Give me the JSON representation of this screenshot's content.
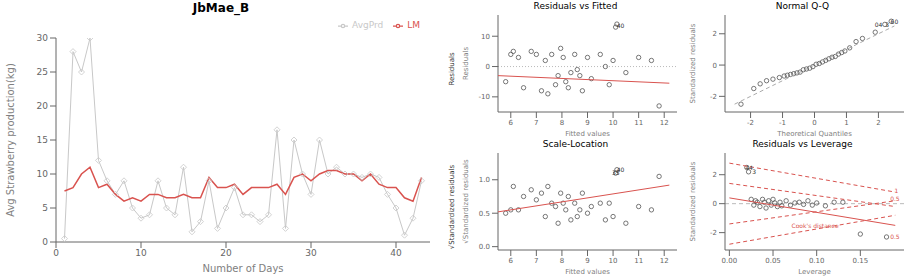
{
  "chart_data": [
    {
      "type": "line",
      "title": "JbMae_B",
      "x_label": "Number of Days",
      "y_label": "Avg Strawberry production(kg)",
      "x": [
        1,
        2,
        3,
        4,
        5,
        6,
        7,
        8,
        9,
        10,
        11,
        12,
        13,
        14,
        15,
        16,
        17,
        18,
        19,
        20,
        21,
        22,
        23,
        24,
        25,
        26,
        27,
        28,
        29,
        30,
        31,
        32,
        33,
        34,
        35,
        36,
        37,
        38,
        39,
        40,
        41,
        42,
        43
      ],
      "series": [
        {
          "name": "AvgPrd",
          "color": "#c8c8c8",
          "marker": "diamond",
          "values": [
            0.5,
            28,
            25,
            30,
            12,
            9,
            7,
            9,
            5,
            3.5,
            4,
            9,
            5,
            4,
            11,
            1.5,
            3,
            9,
            2,
            5,
            8,
            4,
            4,
            3,
            4,
            16.5,
            2,
            15,
            10,
            7,
            15,
            10,
            11,
            10,
            10,
            9.5,
            10,
            9.5,
            7,
            5,
            1,
            3.5,
            9
          ]
        },
        {
          "name": "LM",
          "color": "#d9534f",
          "values": [
            7.5,
            8,
            10,
            11,
            8,
            8.5,
            7,
            6,
            6.5,
            6,
            7,
            7,
            6.5,
            6.5,
            7,
            6.5,
            6.5,
            9.5,
            8,
            8,
            8.5,
            7,
            8,
            8,
            8,
            8.5,
            7,
            9.5,
            10,
            9,
            10,
            10.5,
            10.5,
            10,
            10,
            9,
            10,
            8.5,
            8,
            8,
            6.5,
            6,
            9.5
          ]
        }
      ],
      "xlim": [
        0,
        44
      ],
      "ylim": [
        0,
        30
      ],
      "xticks": [
        0,
        10,
        20,
        30,
        40
      ],
      "yticks": [
        0,
        5,
        10,
        15,
        20,
        25,
        30
      ],
      "legend": "upper right",
      "grid": false
    },
    {
      "type": "scatter",
      "title": "Residuals vs Fitted",
      "x_label": "Fitted values",
      "y_label": "Residuals",
      "series": [
        {
          "type": "scatter",
          "marker": "circle",
          "color": "#555555",
          "x": [
            5.8,
            6.0,
            6.1,
            6.3,
            6.5,
            6.8,
            7.0,
            7.2,
            7.35,
            7.45,
            7.6,
            7.75,
            7.85,
            7.95,
            8.05,
            8.15,
            8.25,
            8.35,
            8.5,
            8.6,
            8.7,
            8.8,
            9.0,
            9.15,
            9.5,
            9.7,
            9.85,
            10.0,
            10.1,
            10.15,
            10.5,
            11.0,
            11.5,
            11.8
          ],
          "values": [
            -5,
            4,
            5,
            3,
            -7,
            5,
            4,
            -8,
            2,
            -9,
            4,
            -6,
            -3,
            6,
            3,
            -5,
            -7,
            -2,
            4,
            -1,
            -3,
            -8,
            3,
            -4,
            4,
            0,
            -6,
            2,
            13,
            14,
            -2,
            3,
            2,
            -13
          ]
        },
        {
          "type": "line",
          "color": "#d9534f",
          "x": [
            5.5,
            12.2
          ],
          "values": [
            -3.0,
            -5.5
          ]
        }
      ],
      "hline": {
        "value": 0,
        "color": "#aaaaaa",
        "line_style": "dotted"
      },
      "xlim": [
        5.5,
        12.5
      ],
      "ylim": [
        -15,
        17
      ],
      "xticks": [
        6,
        7,
        8,
        9,
        10,
        11,
        12
      ],
      "yticks": [
        -10,
        0,
        10
      ],
      "grid": false,
      "annotations": [
        {
          "text": "40",
          "x": 10.1,
          "y": 13.5,
          "color": "#333333"
        },
        {
          "text": "Residuals",
          "color": "#333333"
        }
      ]
    },
    {
      "type": "scatter",
      "title": "Normal Q-Q",
      "x_label": "Theoretical Quantiles",
      "y_label": "Standardized residuals",
      "series": [
        {
          "type": "scatter",
          "marker": "circle",
          "color": "#555555",
          "x": [
            -2.3,
            -1.9,
            -1.7,
            -1.5,
            -1.3,
            -1.1,
            -0.95,
            -0.85,
            -0.75,
            -0.65,
            -0.55,
            -0.45,
            -0.35,
            -0.25,
            -0.15,
            -0.05,
            0.05,
            0.15,
            0.25,
            0.35,
            0.45,
            0.55,
            0.65,
            0.75,
            0.85,
            0.95,
            1.1,
            1.3,
            1.5,
            1.9,
            2.2,
            2.4
          ],
          "values": [
            -2.5,
            -1.5,
            -1.2,
            -1.0,
            -0.9,
            -0.8,
            -0.7,
            -0.65,
            -0.6,
            -0.55,
            -0.5,
            -0.45,
            -0.3,
            -0.25,
            -0.2,
            -0.1,
            0.05,
            0.1,
            0.2,
            0.3,
            0.4,
            0.5,
            0.55,
            0.7,
            0.8,
            0.9,
            1.1,
            1.5,
            1.7,
            2.1,
            2.6,
            2.8
          ]
        },
        {
          "type": "line",
          "color": "#aaaaaa",
          "line_style": "dashed",
          "x": [
            -2.5,
            2.5
          ],
          "values": [
            -2.5,
            2.5
          ]
        }
      ],
      "xlim": [
        -2.8,
        2.8
      ],
      "ylim": [
        -3.0,
        3.2
      ],
      "xticks": [
        -2,
        -1,
        0,
        1,
        2
      ],
      "yticks": [
        -2,
        0,
        2
      ],
      "grid": false,
      "annotations": [
        {
          "text": "04",
          "x": 1.85,
          "y": 2.55,
          "color": "#333333"
        },
        {
          "text": "3",
          "x": 2.18,
          "y": 2.6,
          "color": "#333333"
        },
        {
          "text": "60",
          "x": 2.35,
          "y": 2.78,
          "color": "#333333"
        }
      ]
    },
    {
      "type": "scatter",
      "title": "Scale-Location",
      "x_label": "Fitted values",
      "y_label": "√Standardized residuals",
      "series": [
        {
          "type": "scatter",
          "marker": "circle",
          "color": "#555555",
          "x": [
            5.8,
            6.0,
            6.1,
            6.3,
            6.5,
            6.8,
            7.0,
            7.2,
            7.35,
            7.45,
            7.6,
            7.75,
            7.85,
            7.95,
            8.05,
            8.15,
            8.25,
            8.35,
            8.5,
            8.6,
            8.7,
            8.8,
            9.0,
            9.15,
            9.5,
            9.7,
            9.85,
            10.0,
            10.1,
            10.15,
            10.5,
            11.0,
            11.5,
            11.8
          ],
          "values": [
            0.5,
            0.55,
            0.9,
            0.55,
            0.75,
            0.85,
            0.7,
            0.8,
            0.45,
            0.9,
            0.65,
            0.6,
            0.35,
            0.8,
            0.65,
            0.55,
            0.75,
            0.4,
            0.65,
            0.45,
            0.55,
            0.8,
            0.5,
            0.6,
            0.65,
            0.4,
            0.65,
            0.45,
            1.1,
            1.15,
            0.35,
            0.6,
            0.55,
            1.05
          ]
        },
        {
          "type": "line",
          "color": "#d9534f",
          "x": [
            5.5,
            12.2
          ],
          "values": [
            0.52,
            0.92
          ]
        }
      ],
      "xlim": [
        5.5,
        12.5
      ],
      "ylim": [
        -0.05,
        1.4
      ],
      "xticks": [
        6,
        7,
        8,
        9,
        10,
        11,
        12
      ],
      "yticks": [
        {
          "value": 0.0,
          "label": "0.0"
        },
        0.5,
        {
          "value": 1.0,
          "label": "1.0"
        }
      ],
      "grid": false,
      "annotations": [
        {
          "text": "35",
          "x": 9.92,
          "y": 1.1,
          "color": "#333333"
        },
        {
          "text": "40",
          "x": 10.1,
          "y": 1.15,
          "color": "#333333"
        },
        {
          "text": "√Standardized residuals",
          "color": "#333333"
        }
      ]
    },
    {
      "type": "scatter",
      "title": "Residuals vs Leverage",
      "x_label": "Leverage",
      "y_label": "Standardized residuals",
      "series": [
        {
          "type": "scatter",
          "marker": "circle",
          "color": "#555555",
          "x": [
            0.02,
            0.022,
            0.025,
            0.028,
            0.03,
            0.032,
            0.035,
            0.038,
            0.04,
            0.042,
            0.045,
            0.048,
            0.05,
            0.052,
            0.055,
            0.058,
            0.06,
            0.065,
            0.07,
            0.075,
            0.08,
            0.085,
            0.09,
            0.095,
            0.1,
            0.11,
            0.12,
            0.13,
            0.15,
            0.18
          ],
          "values": [
            2.5,
            2.2,
            0.3,
            -0.1,
            0.2,
            0.1,
            -0.2,
            0.3,
            0.1,
            -0.3,
            0.2,
            -0.1,
            0.3,
            0.05,
            -0.2,
            0.1,
            -0.15,
            0.2,
            -0.1,
            0.05,
            0.1,
            -0.05,
            0.2,
            -0.1,
            0.05,
            -0.15,
            0.1,
            0.1,
            -2.1,
            -2.3
          ]
        },
        {
          "type": "line",
          "color": "#d9534f",
          "x": [
            0.0,
            0.19
          ],
          "values": [
            0.4,
            -1.5
          ]
        },
        {
          "type": "line",
          "color": "#d9534f",
          "line_style": "dashed",
          "x": [
            0.0,
            0.19
          ],
          "values": [
            2.8,
            0.8
          ]
        },
        {
          "type": "line",
          "color": "#d9534f",
          "line_style": "dashed",
          "x": [
            0.0,
            0.19
          ],
          "values": [
            -2.8,
            -0.8
          ]
        },
        {
          "type": "line",
          "color": "#d9534f",
          "line_style": "dashed",
          "x": [
            0.0,
            0.19
          ],
          "values": [
            1.4,
            -0.2
          ]
        },
        {
          "type": "line",
          "color": "#d9534f",
          "line_style": "dashed",
          "x": [
            0.0,
            0.19
          ],
          "values": [
            -1.4,
            0.2
          ]
        }
      ],
      "hline": {
        "value": 0,
        "color": "#aaaaaa",
        "line_style": "dashed"
      },
      "xlim": [
        -0.005,
        0.2
      ],
      "ylim": [
        -3.2,
        3.5
      ],
      "xticks": [
        {
          "value": 0.0,
          "label": "0.00"
        },
        0.05,
        {
          "value": 0.1,
          "label": "0.10"
        },
        0.15
      ],
      "yticks": [
        -2,
        0,
        2
      ],
      "grid": false,
      "annotations": [
        {
          "text": "44",
          "x": 0.017,
          "y": 2.5,
          "color": "#333333"
        },
        {
          "text": "3",
          "x": 0.025,
          "y": 2.2,
          "color": "#333333"
        },
        {
          "text": "Cook's distance",
          "x": 0.07,
          "y": -1.55,
          "color": "#d9534f"
        },
        {
          "text": "1",
          "x": 0.188,
          "y": 0.9,
          "color": "#d9534f"
        },
        {
          "text": "0.5",
          "x": 0.183,
          "y": 0.3,
          "color": "#d9534f"
        },
        {
          "text": "0.5",
          "x": 0.183,
          "y": -2.3,
          "color": "#d9534f"
        }
      ]
    }
  ]
}
